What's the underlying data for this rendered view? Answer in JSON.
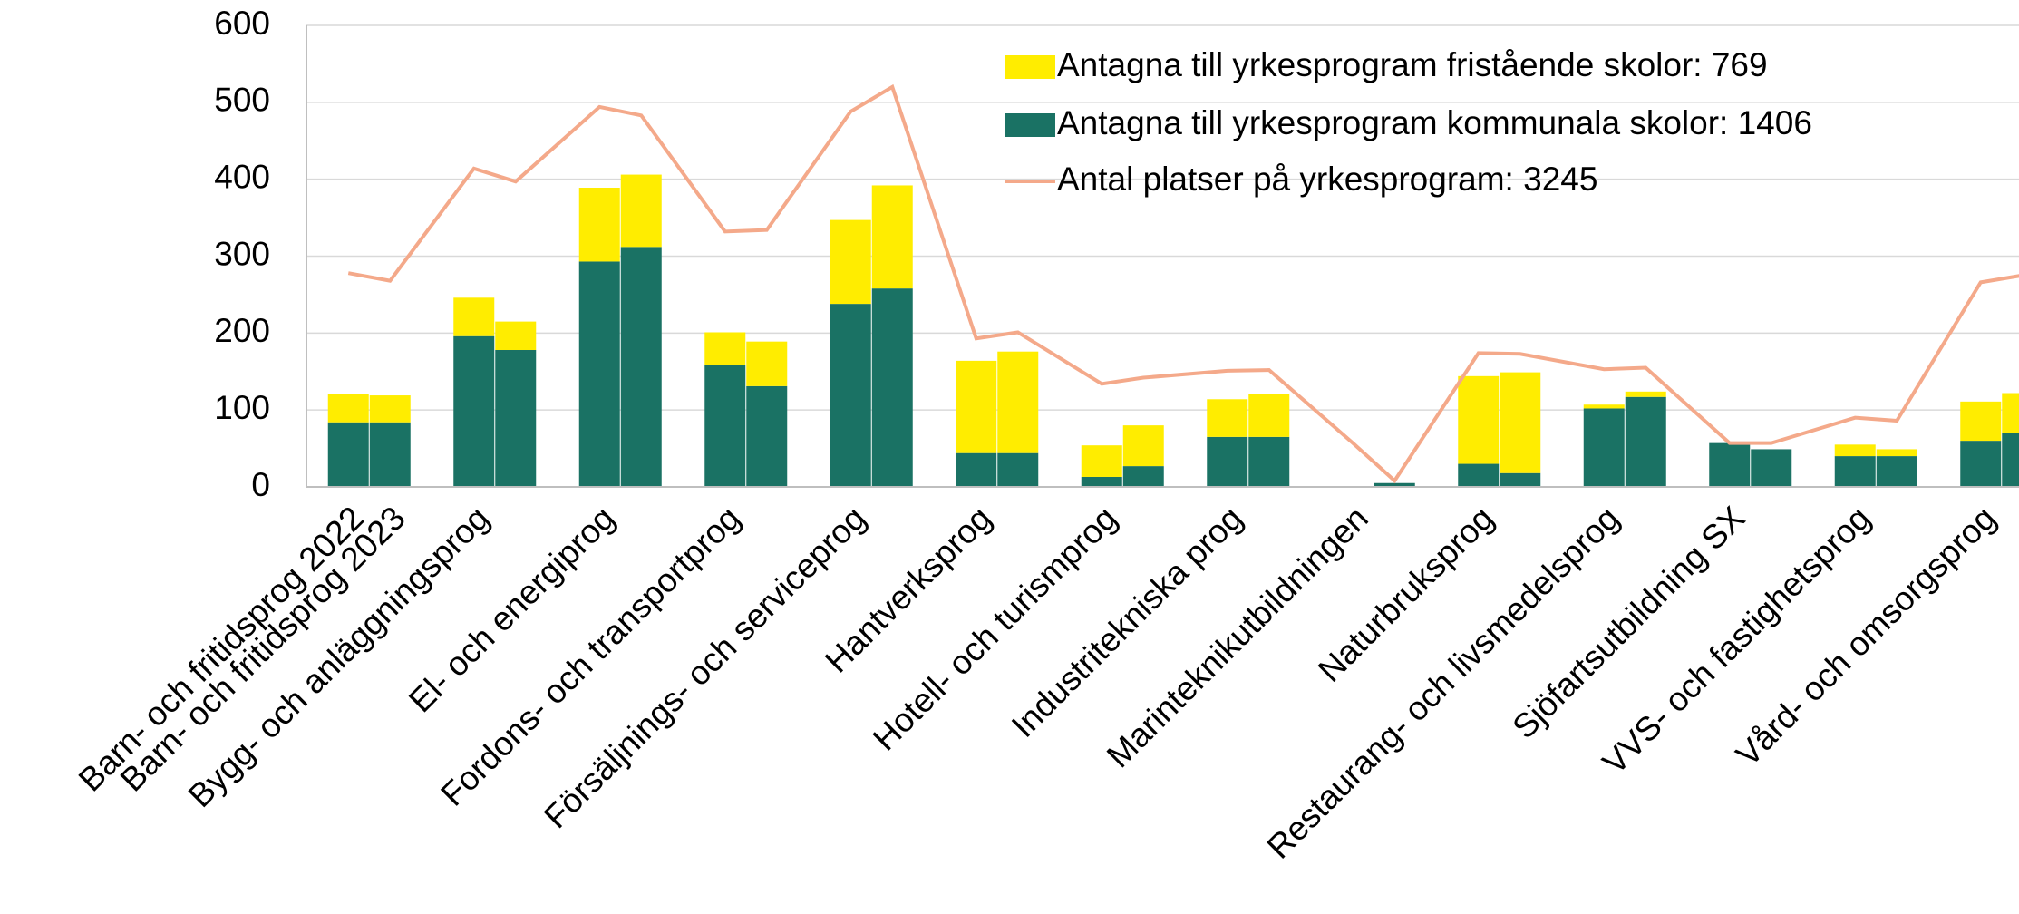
{
  "chart_data": {
    "type": "bar",
    "categories": [
      "Barn- och fritidsprog 2022",
      "Barn- och fritidsprog 2023",
      "Bygg- och anläggningsprog",
      null,
      "El- och energiprog",
      null,
      "Fordons- och transportprog",
      null,
      "Försäljnings- och serviceprog",
      null,
      "Hantverksprog",
      null,
      "Hotell- och turismprog",
      null,
      "Industritekniska prog",
      null,
      "Marinteknikutbildningen",
      null,
      "Naturbruksprog",
      null,
      "Restaurang- och livsmedelsprog",
      null,
      "Sjöfartsutbildning SX",
      null,
      "VVS- och fastighetsprog",
      null,
      "Vård- och omsorgsprog",
      null
    ],
    "series": [
      {
        "name": "Antagna till yrkesprogram fristående skolor: 769",
        "color": "#ffed00",
        "stack": "bottom-on",
        "values": [
          37,
          35,
          50,
          37,
          96,
          94,
          43,
          58,
          109,
          134,
          120,
          132,
          41,
          53,
          49,
          56,
          0,
          0,
          114,
          131,
          5,
          7,
          0,
          0,
          15,
          9,
          51,
          52
        ]
      },
      {
        "name": "Antagna till yrkesprogram kommunala skolor: 1406",
        "color": "#1a7264",
        "values": [
          84,
          84,
          196,
          178,
          293,
          312,
          158,
          131,
          238,
          258,
          44,
          44,
          13,
          27,
          65,
          65,
          0,
          5,
          30,
          18,
          102,
          117,
          57,
          49,
          40,
          40,
          60,
          70
        ]
      },
      {
        "name": "Antal platser på yrkesprogram: 3245",
        "color": "#f4a98a",
        "kind": "line",
        "values": [
          278,
          268,
          414,
          397,
          494,
          483,
          332,
          334,
          488,
          520,
          193,
          201,
          134,
          142,
          151,
          152,
          57,
          8,
          174,
          173,
          153,
          155,
          57,
          57,
          90,
          86,
          266,
          275
        ]
      }
    ],
    "ylim": [
      0,
      600
    ],
    "yticks": [
      0,
      100,
      200,
      300,
      400,
      500,
      600
    ],
    "grid": true,
    "legend": "top-right"
  }
}
